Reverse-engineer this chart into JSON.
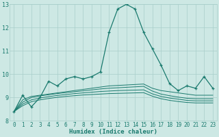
{
  "x": [
    0,
    1,
    2,
    3,
    4,
    5,
    6,
    7,
    8,
    9,
    10,
    11,
    12,
    13,
    14,
    15,
    16,
    17,
    18,
    19,
    20,
    21,
    22,
    23
  ],
  "humidex": [
    8.4,
    9.1,
    8.6,
    9.0,
    9.7,
    9.5,
    9.8,
    9.9,
    9.8,
    9.9,
    10.1,
    11.8,
    12.8,
    13.0,
    12.8,
    11.8,
    11.1,
    10.4,
    9.6,
    9.3,
    9.5,
    9.4,
    9.9,
    9.4
  ],
  "smooth1": [
    8.4,
    8.9,
    9.05,
    9.1,
    9.15,
    9.2,
    9.25,
    9.3,
    9.35,
    9.4,
    9.45,
    9.5,
    9.52,
    9.54,
    9.56,
    9.58,
    9.4,
    9.3,
    9.25,
    9.2,
    9.15,
    9.1,
    9.1,
    9.1
  ],
  "smooth2": [
    8.4,
    8.8,
    9.0,
    9.07,
    9.12,
    9.17,
    9.21,
    9.25,
    9.29,
    9.33,
    9.37,
    9.4,
    9.42,
    9.44,
    9.46,
    9.48,
    9.28,
    9.15,
    9.08,
    9.02,
    8.97,
    8.95,
    8.95,
    8.95
  ],
  "smooth3": [
    8.4,
    8.72,
    8.9,
    8.98,
    9.04,
    9.09,
    9.13,
    9.17,
    9.2,
    9.23,
    9.26,
    9.28,
    9.3,
    9.31,
    9.32,
    9.33,
    9.16,
    9.05,
    8.98,
    8.93,
    8.88,
    8.86,
    8.86,
    8.86
  ],
  "smooth4": [
    8.4,
    8.65,
    8.82,
    8.9,
    8.96,
    9.01,
    9.05,
    9.08,
    9.11,
    9.13,
    9.15,
    9.17,
    9.18,
    9.19,
    9.2,
    9.21,
    9.06,
    8.95,
    8.88,
    8.83,
    8.79,
    8.77,
    8.77,
    8.77
  ],
  "line_color": "#1a7a6e",
  "bg_color": "#cde8e4",
  "grid_color": "#a8ceca",
  "xlabel": "Humidex (Indice chaleur)",
  "ylim": [
    8,
    13
  ],
  "xlim": [
    -0.5,
    23.5
  ],
  "yticks": [
    8,
    9,
    10,
    11,
    12,
    13
  ],
  "xticks": [
    0,
    1,
    2,
    3,
    4,
    5,
    6,
    7,
    8,
    9,
    10,
    11,
    12,
    13,
    14,
    15,
    16,
    17,
    18,
    19,
    20,
    21,
    22,
    23
  ],
  "tick_fontsize": 5.5,
  "xlabel_fontsize": 6.5
}
